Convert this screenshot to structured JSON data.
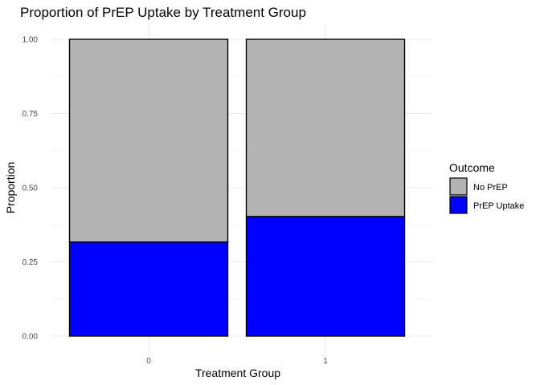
{
  "chart_data": {
    "type": "bar",
    "stacked": true,
    "title": "Proportion of PrEP Uptake by Treatment Group",
    "xlabel": "Treatment Group",
    "ylabel": "Proportion",
    "categories": [
      "0",
      "1"
    ],
    "ylim": [
      0,
      1
    ],
    "yticks": [
      "0.00",
      "0.25",
      "0.50",
      "0.75",
      "1.00"
    ],
    "ytick_values": [
      0,
      0.25,
      0.5,
      0.75,
      1.0
    ],
    "grid": true,
    "legend": {
      "title": "Outcome",
      "position": "right"
    },
    "series": [
      {
        "name": "PrEP Uptake",
        "color": "#0000ff",
        "values": [
          0.317,
          0.403
        ]
      },
      {
        "name": "No PrEP",
        "color": "#b3b3b3",
        "values": [
          0.683,
          0.597
        ]
      }
    ],
    "legend_order": [
      "No PrEP",
      "PrEP Uptake"
    ]
  }
}
